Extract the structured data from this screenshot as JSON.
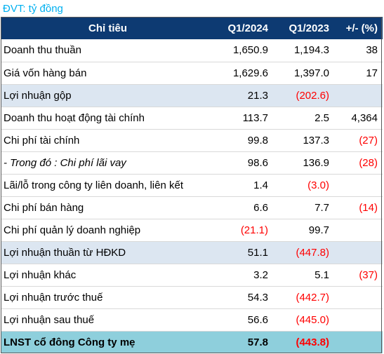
{
  "unit_label": "ĐVT: tỷ đồng",
  "headers": [
    "Chỉ tiêu",
    "Q1/2024",
    "Q1/2023",
    "+/- (%)"
  ],
  "rows": [
    {
      "name": "Doanh thu thuần",
      "q1_2024": "1,650.9",
      "q1_2023": "1,194.3",
      "change": "38",
      "neg": [
        false,
        false,
        false
      ],
      "style": ""
    },
    {
      "name": "Giá vốn hàng bán",
      "q1_2024": "1,629.6",
      "q1_2023": "1,397.0",
      "change": "17",
      "neg": [
        false,
        false,
        false
      ],
      "style": ""
    },
    {
      "name": "Lợi nhuận gộp",
      "q1_2024": "21.3",
      "q1_2023": "(202.6)",
      "change": "",
      "neg": [
        false,
        true,
        false
      ],
      "style": "hl"
    },
    {
      "name": "Doanh thu hoạt động tài chính",
      "q1_2024": "113.7",
      "q1_2023": "2.5",
      "change": "4,364",
      "neg": [
        false,
        false,
        false
      ],
      "style": ""
    },
    {
      "name": "Chi phí tài chính",
      "q1_2024": "99.8",
      "q1_2023": "137.3",
      "change": "(27)",
      "neg": [
        false,
        false,
        true
      ],
      "style": ""
    },
    {
      "name": "- Trong đó : Chi phí lãi vay",
      "q1_2024": "98.6",
      "q1_2023": "136.9",
      "change": "(28)",
      "neg": [
        false,
        false,
        true
      ],
      "style": "italic"
    },
    {
      "name": "Lãi/lỗ trong công ty liên doanh, liên kết",
      "q1_2024": "1.4",
      "q1_2023": "(3.0)",
      "change": "",
      "neg": [
        false,
        true,
        false
      ],
      "style": ""
    },
    {
      "name": "Chi phí bán hàng",
      "q1_2024": "6.6",
      "q1_2023": "7.7",
      "change": "(14)",
      "neg": [
        false,
        false,
        true
      ],
      "style": ""
    },
    {
      "name": "Chi phí quản lý doanh nghiệp",
      "q1_2024": "(21.1)",
      "q1_2023": "99.7",
      "change": "",
      "neg": [
        true,
        false,
        false
      ],
      "style": ""
    },
    {
      "name": "Lợi nhuận thuần từ HĐKD",
      "q1_2024": "51.1",
      "q1_2023": "(447.8)",
      "change": "",
      "neg": [
        false,
        true,
        false
      ],
      "style": "hl"
    },
    {
      "name": "Lợi nhuận khác",
      "q1_2024": "3.2",
      "q1_2023": "5.1",
      "change": "(37)",
      "neg": [
        false,
        false,
        true
      ],
      "style": ""
    },
    {
      "name": "Lợi nhuận trước thuế",
      "q1_2024": "54.3",
      "q1_2023": "(442.7)",
      "change": "",
      "neg": [
        false,
        true,
        false
      ],
      "style": ""
    },
    {
      "name": "Lợi nhuận sau thuế",
      "q1_2024": "56.6",
      "q1_2023": "(445.0)",
      "change": "",
      "neg": [
        false,
        true,
        false
      ],
      "style": ""
    },
    {
      "name": "LNST cổ đông Công ty mẹ",
      "q1_2024": "57.8",
      "q1_2023": "(443.8)",
      "change": "",
      "neg": [
        false,
        true,
        false
      ],
      "style": "total"
    }
  ],
  "colors": {
    "header_bg": "#0d3a72",
    "highlight_bg": "#dce6f1",
    "total_bg": "#8ecfdc",
    "negative": "#ff0000",
    "unit_text": "#00b0f0"
  }
}
